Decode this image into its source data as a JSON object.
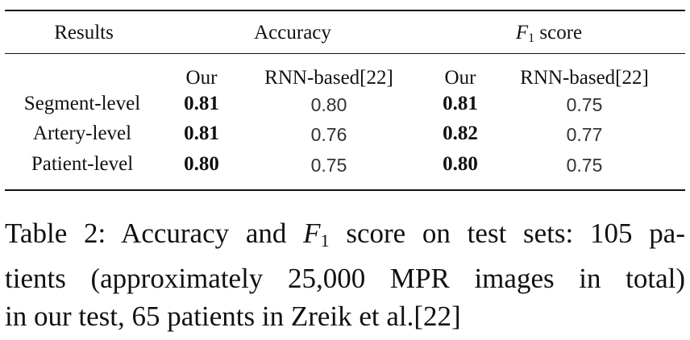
{
  "table": {
    "header": {
      "results": "Results",
      "accuracy": "Accuracy",
      "f1_var": "F",
      "f1_sub": "1",
      "f1_rest": " score"
    },
    "subheader": [
      "Our",
      "RNN-based[22]",
      "Our",
      "RNN-based[22]"
    ],
    "rows": [
      {
        "label": "Segment-level",
        "values": [
          "0.81",
          "0.80",
          "0.81",
          "0.75"
        ]
      },
      {
        "label": "Artery-level",
        "values": [
          "0.81",
          "0.76",
          "0.82",
          "0.77"
        ]
      },
      {
        "label": "Patient-level",
        "values": [
          "0.80",
          "0.75",
          "0.80",
          "0.75"
        ]
      }
    ]
  },
  "caption": {
    "line1_a": "Table 2: Accuracy and ",
    "line1_var": "F",
    "line1_sub": "1",
    "line1_b": " score on test sets: 105 pa-",
    "line2": "tients (approximately 25,000 MPR images in total)",
    "line3": "in our test, 65 patients in Zreik et al.[22]"
  }
}
